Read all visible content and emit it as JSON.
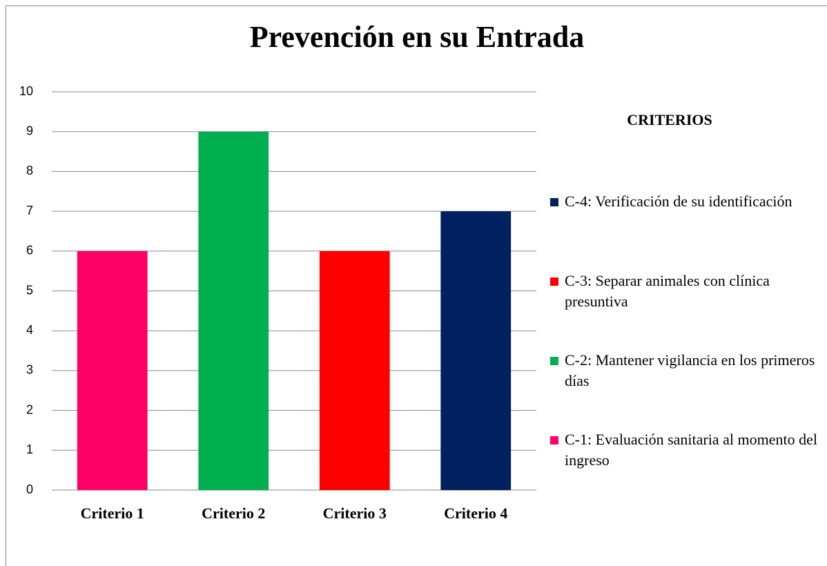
{
  "chart_data": {
    "type": "bar",
    "title": "Prevención en su Entrada",
    "categories": [
      "Criterio 1",
      "Criterio 2",
      "Criterio 3",
      "Criterio 4"
    ],
    "values": [
      6,
      9,
      6,
      7
    ],
    "colors": [
      "#ff0066",
      "#00b050",
      "#ff0000",
      "#002060"
    ],
    "legend_title": "CRITERIOS",
    "legend_labels": [
      " C-1: Evaluación sanitaria al momento del ingreso",
      "C-2: Mantener vigilancia en los primeros días",
      "C-3: Separar animales con clínica presuntiva",
      " C-4: Verificación de su identificación"
    ],
    "ylim": [
      0,
      10
    ],
    "yticks": [
      0,
      1,
      2,
      3,
      4,
      5,
      6,
      7,
      8,
      9,
      10
    ],
    "grid": true
  }
}
